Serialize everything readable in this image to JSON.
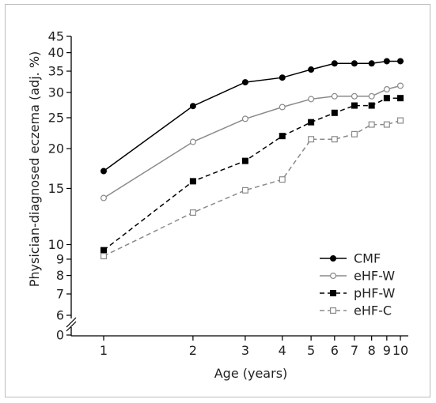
{
  "chart_data": {
    "type": "line",
    "xlabel": "Age (years)",
    "ylabel": "Physician-diagnosed eczema (adj. %)",
    "x_scale": "log",
    "y_scale": "log",
    "y_axis_break": "6 to 0",
    "x": [
      1,
      2,
      3,
      4,
      5,
      6,
      7,
      8,
      9,
      10
    ],
    "xticks": [
      "1",
      "2",
      "3",
      "4",
      "5",
      "6",
      "7",
      "8",
      "9",
      "10"
    ],
    "yticks": [
      "0",
      "6",
      "7",
      "8",
      "9",
      "10",
      "15",
      "20",
      "25",
      "30",
      "35",
      "40",
      "45"
    ],
    "ylim": [
      6,
      45
    ],
    "legend_position": "lower right",
    "grid": false,
    "series": [
      {
        "name": "CMF",
        "marker": "filled-circle",
        "dash": "solid",
        "color": "#000000",
        "values": [
          17.0,
          27.2,
          32.3,
          33.4,
          35.4,
          37.0,
          37.0,
          37.0,
          37.6,
          37.6
        ]
      },
      {
        "name": "eHF-W",
        "marker": "open-circle",
        "dash": "solid",
        "color": "#8a8a8a",
        "values": [
          14.0,
          21.0,
          24.8,
          27.0,
          28.6,
          29.2,
          29.2,
          29.2,
          30.7,
          31.5
        ]
      },
      {
        "name": "pHF-W",
        "marker": "filled-square",
        "dash": "dashed",
        "color": "#000000",
        "values": [
          9.6,
          15.8,
          18.3,
          21.9,
          24.2,
          25.9,
          27.3,
          27.3,
          28.8,
          28.8
        ]
      },
      {
        "name": "eHF-C",
        "marker": "open-square",
        "dash": "dashed",
        "color": "#8a8a8a",
        "values": [
          9.2,
          12.6,
          14.8,
          16.0,
          21.4,
          21.4,
          22.2,
          23.8,
          23.8,
          24.5
        ]
      }
    ]
  }
}
